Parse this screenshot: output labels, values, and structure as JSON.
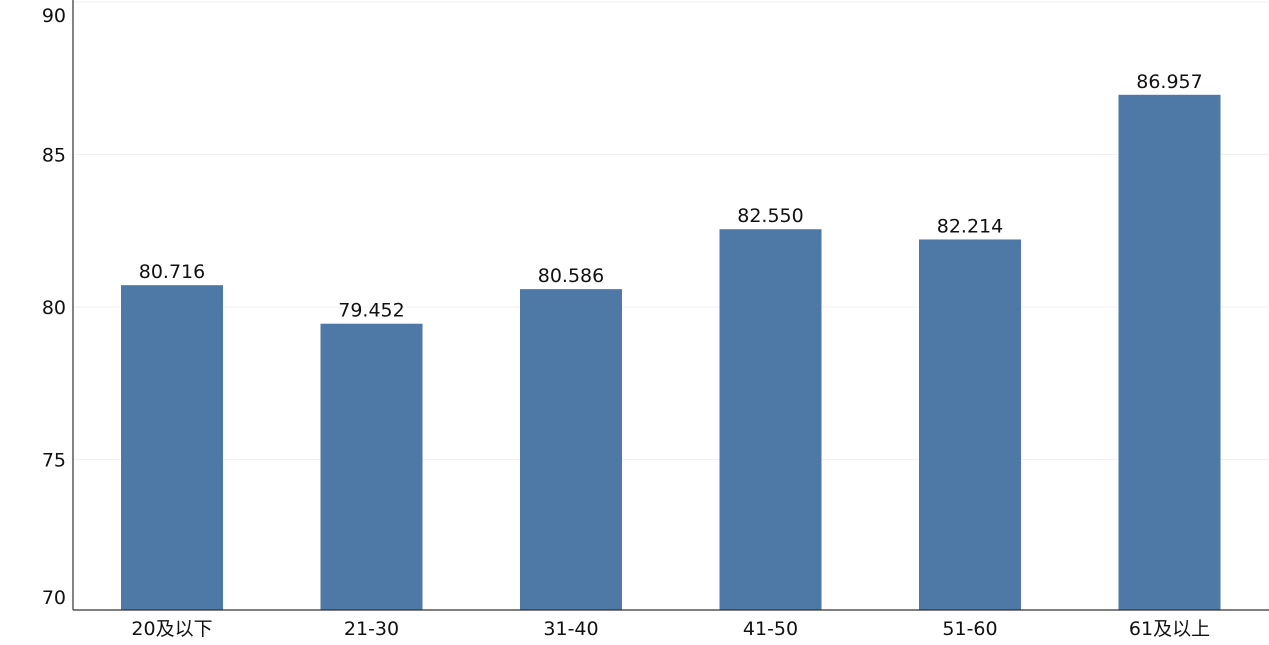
{
  "chart_data": {
    "type": "bar",
    "categories": [
      "20及以下",
      "21-30",
      "31-40",
      "41-50",
      "51-60",
      "61及以上"
    ],
    "values": [
      80.716,
      79.452,
      80.586,
      82.55,
      82.214,
      86.957
    ],
    "value_labels": [
      "80.716",
      "79.452",
      "80.586",
      "82.550",
      "82.214",
      "86.957"
    ],
    "yticks": [
      70,
      75,
      80,
      85,
      90
    ],
    "ytick_labels": [
      "70",
      "75",
      "80",
      "85",
      "90"
    ],
    "ylim": [
      70,
      90
    ],
    "bar_color": "#4e79a7",
    "axis_color": "#333333",
    "grid_color": "#f2f2f2",
    "grid": true
  }
}
